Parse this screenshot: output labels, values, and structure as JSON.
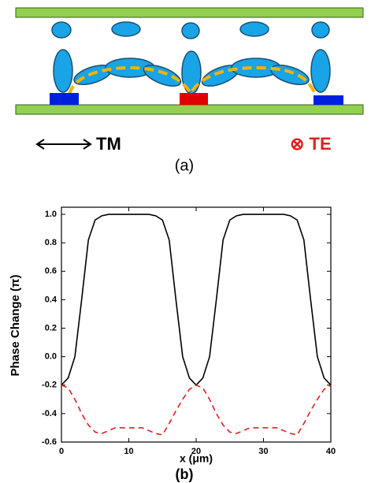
{
  "diagram": {
    "tm_label": "TM",
    "te_label": "⊗ TE",
    "caption": "(a)"
  },
  "chart_data": {
    "type": "line",
    "xlabel": "x (μm)",
    "ylabel": "Phase Change (π)",
    "caption": "(b)",
    "x": [
      0,
      1,
      2,
      3,
      4,
      5,
      6,
      7,
      8,
      9,
      10,
      11,
      12,
      13,
      14,
      15,
      16,
      17,
      18,
      19,
      20,
      21,
      22,
      23,
      24,
      25,
      26,
      27,
      28,
      29,
      30,
      31,
      32,
      33,
      34,
      35,
      36,
      37,
      38,
      39,
      40
    ],
    "series": [
      {
        "color": "#000000",
        "dashed": false,
        "values": [
          -0.2,
          -0.15,
          0.0,
          0.4,
          0.82,
          0.96,
          0.99,
          1.0,
          1.0,
          1.0,
          1.0,
          1.0,
          1.0,
          1.0,
          0.99,
          0.96,
          0.82,
          0.4,
          0.0,
          -0.15,
          -0.2,
          -0.15,
          0.0,
          0.4,
          0.82,
          0.96,
          0.99,
          1.0,
          1.0,
          1.0,
          1.0,
          1.0,
          1.0,
          1.0,
          0.99,
          0.96,
          0.82,
          0.4,
          0.0,
          -0.15,
          -0.2
        ]
      },
      {
        "color": "#e02020",
        "dashed": true,
        "values": [
          -0.2,
          -0.22,
          -0.3,
          -0.4,
          -0.48,
          -0.53,
          -0.54,
          -0.52,
          -0.5,
          -0.5,
          -0.5,
          -0.5,
          -0.5,
          -0.52,
          -0.54,
          -0.55,
          -0.47,
          -0.38,
          -0.3,
          -0.23,
          -0.2,
          -0.22,
          -0.3,
          -0.4,
          -0.48,
          -0.53,
          -0.54,
          -0.52,
          -0.5,
          -0.5,
          -0.5,
          -0.5,
          -0.5,
          -0.52,
          -0.54,
          -0.55,
          -0.47,
          -0.38,
          -0.3,
          -0.23,
          -0.2
        ]
      }
    ],
    "xlim": [
      0,
      40
    ],
    "xticks": [
      0,
      10,
      20,
      30,
      40
    ],
    "ylim": [
      -0.6,
      1.05
    ],
    "yticks": [
      -0.6,
      -0.4,
      -0.2,
      {
        "value": 0,
        "label": "0.0"
      },
      0.2,
      0.4,
      0.6,
      0.8,
      {
        "value": 1,
        "label": "1.0"
      }
    ]
  }
}
